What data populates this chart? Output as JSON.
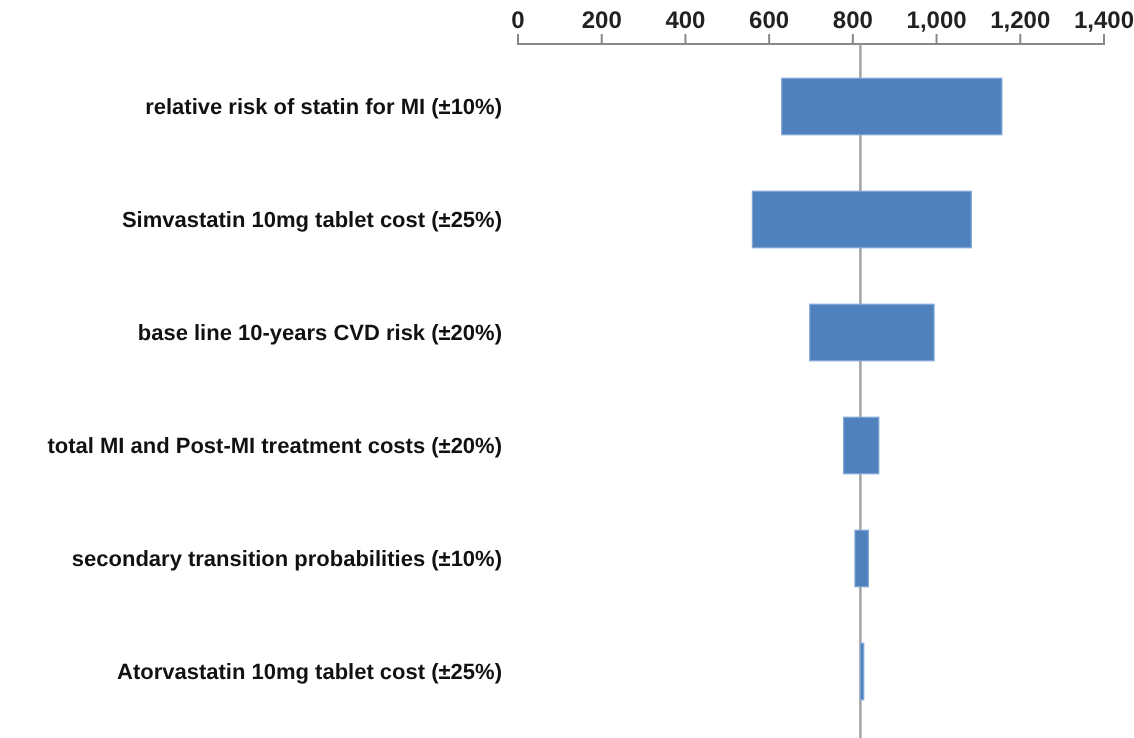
{
  "chart_data": {
    "type": "bar",
    "orientation": "horizontal",
    "categories": [
      "relative risk of statin for MI (±10%)",
      "Simvastatin 10mg tablet cost (±25%)",
      "base line 10-years  CVD risk (±20%)",
      "total MI and Post-MI treatment costs (±20%)",
      "secondary transition probabilities (±10%)",
      "Atorvastatin 10mg tablet cost (±25%)"
    ],
    "base": [
      630,
      560,
      697,
      778,
      805,
      818
    ],
    "values": [
      526,
      523,
      297,
      84,
      32,
      8
    ],
    "color": "#4f81bd",
    "xlim": [
      0,
      1400
    ],
    "xticks": [
      0,
      {
        "value": 200,
        "label": "200"
      },
      {
        "value": 400,
        "label": "400"
      },
      {
        "value": 600,
        "label": "600"
      },
      {
        "value": 800,
        "label": "800"
      },
      {
        "value": 1000,
        "label": "1,000"
      },
      {
        "value": 1200,
        "label": "1,200"
      },
      {
        "value": 1400,
        "label": "1,400"
      }
    ],
    "ref_lines": [
      {
        "axis": "x",
        "value": 818,
        "color": "#a0a0a0"
      }
    ]
  }
}
